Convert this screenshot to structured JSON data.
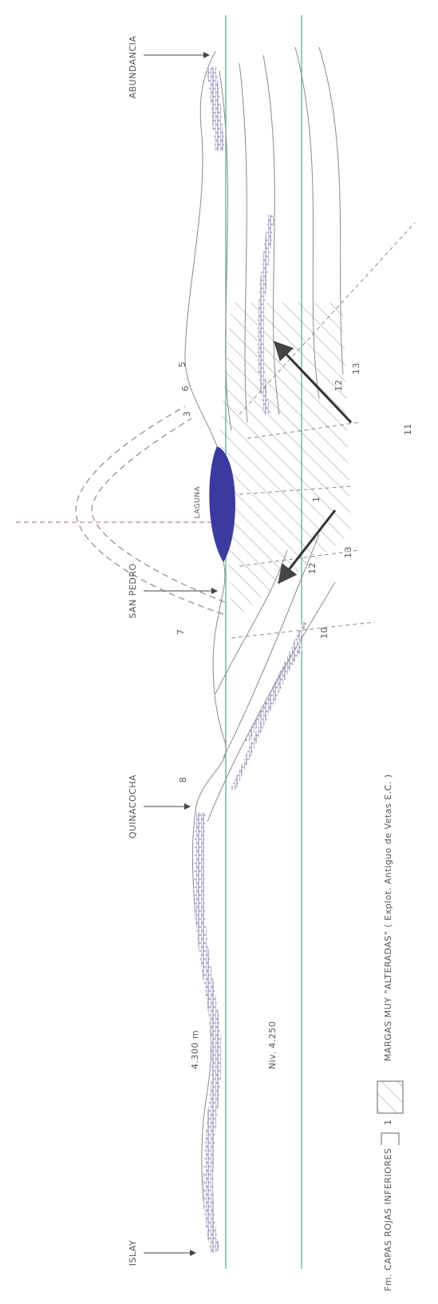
{
  "labels": {
    "islay": "ISLAY",
    "altitude": "4.300 m",
    "level": "Niv. 4.250",
    "quinacocha": "QUINACOCHA",
    "san_pedro": "SAN PEDRO",
    "laguna": "LAGUNA",
    "abundancia": "ABUNDANCIA"
  },
  "numbers": [
    "8",
    "7",
    "10",
    "12",
    "13",
    "12",
    "13",
    "3",
    "6",
    "5",
    "11",
    "1"
  ],
  "legend": {
    "unit": "Fm. CAPAS ROJAS INFERIORES",
    "symbol_number": "1",
    "description": "MARGAS MUY \"ALTERADAS\" ( Explot. Antiguo de Vetas E.C. )"
  }
}
